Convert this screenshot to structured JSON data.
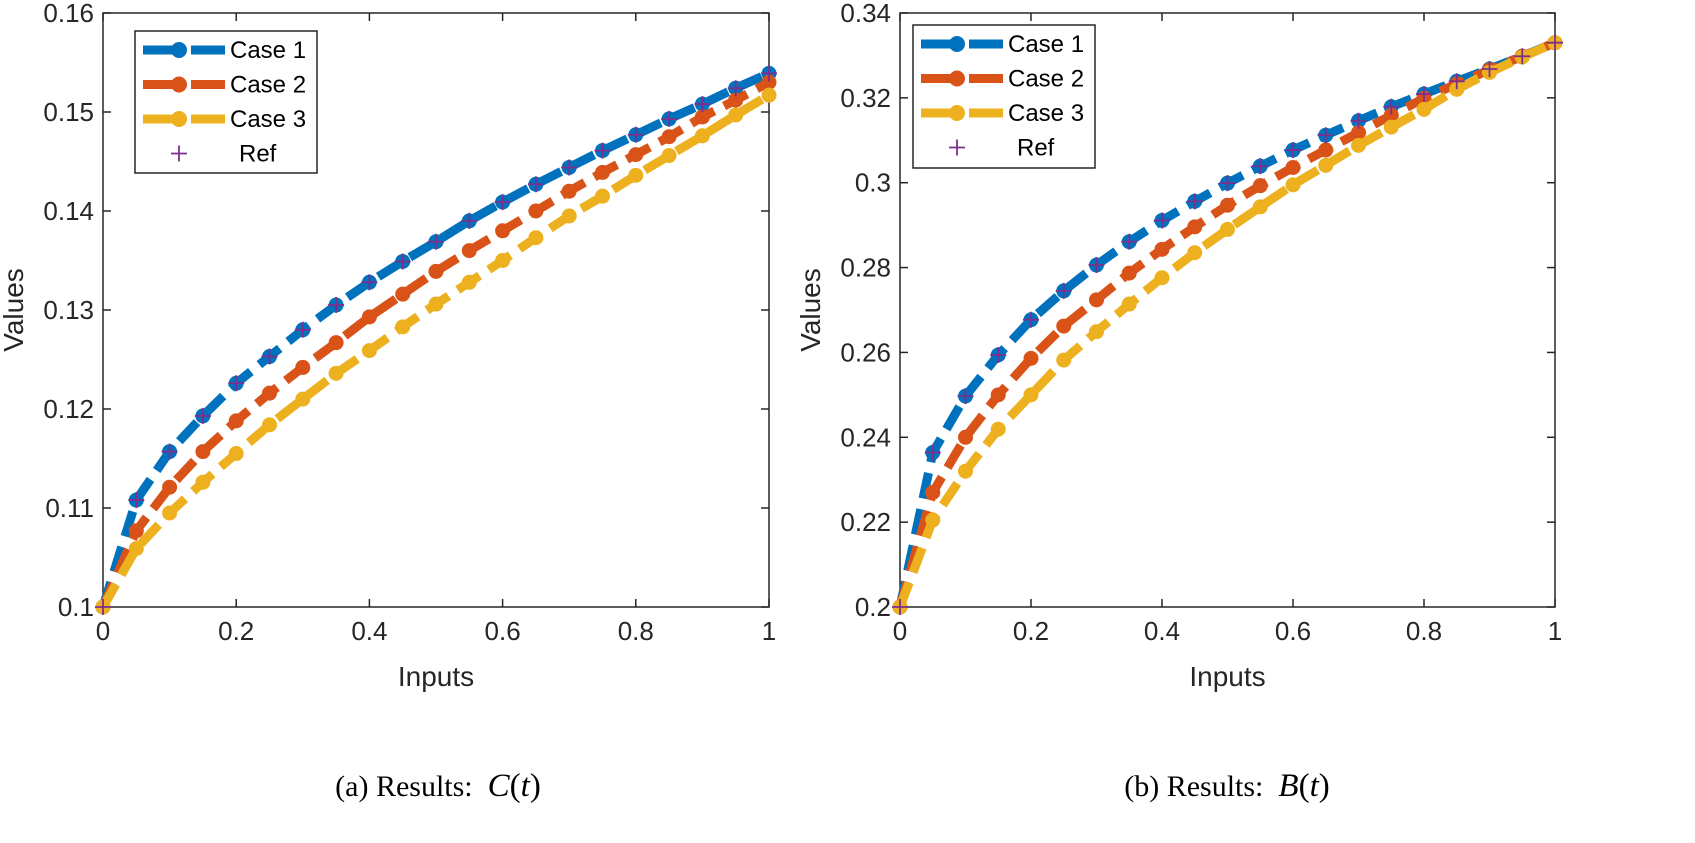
{
  "chart_data": [
    {
      "type": "line",
      "caption_prefix": "(a) Results:",
      "caption_fn": "C",
      "caption_arg": "t",
      "xlabel": "Inputs",
      "ylabel": "Values",
      "xlim": [
        0,
        1
      ],
      "ylim": [
        0.1,
        0.16
      ],
      "xticks": [
        "0",
        "0.2",
        "0.4",
        "0.6",
        "0.8",
        "1"
      ],
      "yticks": [
        "0.1",
        "0.11",
        "0.12",
        "0.13",
        "0.14",
        "0.15",
        "0.16"
      ],
      "legend_position": "top-left",
      "x": [
        0,
        0.05,
        0.1,
        0.15,
        0.2,
        0.25,
        0.3,
        0.35,
        0.4,
        0.45,
        0.5,
        0.55,
        0.6,
        0.65,
        0.7,
        0.75,
        0.8,
        0.85,
        0.9,
        0.95,
        1.0
      ],
      "series": [
        {
          "name": "Case 1",
          "color": "#0072BD",
          "style": "dashed-circle",
          "values": [
            0.1,
            0.1108,
            0.1157,
            0.1193,
            0.1226,
            0.1253,
            0.128,
            0.1305,
            0.1328,
            0.1349,
            0.1369,
            0.139,
            0.1409,
            0.1427,
            0.1444,
            0.1461,
            0.1477,
            0.1493,
            0.1508,
            0.1524,
            0.1539
          ]
        },
        {
          "name": "Case 2",
          "color": "#D95319",
          "style": "dashed-circle",
          "values": [
            0.1,
            0.1077,
            0.1121,
            0.1157,
            0.1188,
            0.1216,
            0.1242,
            0.1267,
            0.1293,
            0.1316,
            0.1339,
            0.136,
            0.138,
            0.14,
            0.142,
            0.1439,
            0.1457,
            0.1475,
            0.1495,
            0.1512,
            0.153
          ]
        },
        {
          "name": "Case 3",
          "color": "#EDB120",
          "style": "dashed-circle",
          "values": [
            0.1,
            0.1059,
            0.1095,
            0.1126,
            0.1155,
            0.1184,
            0.121,
            0.1236,
            0.1259,
            0.1283,
            0.1306,
            0.1328,
            0.135,
            0.1373,
            0.1395,
            0.1415,
            0.1436,
            0.1456,
            0.1476,
            0.1497,
            0.1517
          ]
        },
        {
          "name": "Ref",
          "color": "#7E2F8E",
          "style": "plus",
          "values": [
            0.1,
            0.1108,
            0.1157,
            0.1193,
            0.1226,
            0.1253,
            0.128,
            0.1305,
            0.1328,
            0.1349,
            0.1369,
            0.139,
            0.1409,
            0.1427,
            0.1444,
            0.1461,
            0.1477,
            0.1493,
            0.1508,
            0.1524,
            0.1539
          ]
        }
      ]
    },
    {
      "type": "line",
      "caption_prefix": "(b) Results:",
      "caption_fn": "B",
      "caption_arg": "t",
      "xlabel": "Inputs",
      "ylabel": "Values",
      "xlim": [
        0,
        1
      ],
      "ylim": [
        0.2,
        0.34
      ],
      "xticks": [
        "0",
        "0.2",
        "0.4",
        "0.6",
        "0.8",
        "1"
      ],
      "yticks": [
        "0.2",
        "0.22",
        "0.24",
        "0.26",
        "0.28",
        "0.3",
        "0.32",
        "0.34"
      ],
      "legend_position": "top-left",
      "x": [
        0,
        0.05,
        0.1,
        0.15,
        0.2,
        0.25,
        0.3,
        0.35,
        0.4,
        0.45,
        0.5,
        0.55,
        0.6,
        0.65,
        0.7,
        0.75,
        0.8,
        0.85,
        0.9,
        0.95,
        1.0
      ],
      "series": [
        {
          "name": "Case 1",
          "color": "#0072BD",
          "style": "dashed-circle",
          "values": [
            0.2,
            0.2364,
            0.2497,
            0.2594,
            0.2677,
            0.2745,
            0.2806,
            0.2861,
            0.2911,
            0.2956,
            0.2999,
            0.3039,
            0.3077,
            0.3112,
            0.3146,
            0.3179,
            0.3209,
            0.3239,
            0.3268,
            0.3298,
            0.333
          ]
        },
        {
          "name": "Case 2",
          "color": "#D95319",
          "style": "dashed-circle",
          "values": [
            0.2,
            0.227,
            0.24,
            0.25,
            0.2586,
            0.2662,
            0.2724,
            0.2787,
            0.2843,
            0.2896,
            0.2947,
            0.2993,
            0.3036,
            0.3077,
            0.3118,
            0.3159,
            0.3199,
            0.3233,
            0.3266,
            0.3298,
            0.333
          ]
        },
        {
          "name": "Case 3",
          "color": "#EDB120",
          "style": "dashed-circle",
          "values": [
            0.2,
            0.2205,
            0.232,
            0.2419,
            0.25,
            0.2582,
            0.2649,
            0.2714,
            0.2776,
            0.2835,
            0.289,
            0.2943,
            0.2995,
            0.3041,
            0.3088,
            0.3131,
            0.3173,
            0.322,
            0.326,
            0.3296,
            0.333
          ]
        },
        {
          "name": "Ref",
          "color": "#7E2F8E",
          "style": "plus",
          "values": [
            0.2,
            0.2364,
            0.2497,
            0.2594,
            0.2677,
            0.2745,
            0.2806,
            0.2861,
            0.2911,
            0.2956,
            0.2999,
            0.3039,
            0.3077,
            0.3112,
            0.3146,
            0.3179,
            0.3209,
            0.3239,
            0.3268,
            0.3298,
            0.333
          ]
        }
      ]
    }
  ]
}
